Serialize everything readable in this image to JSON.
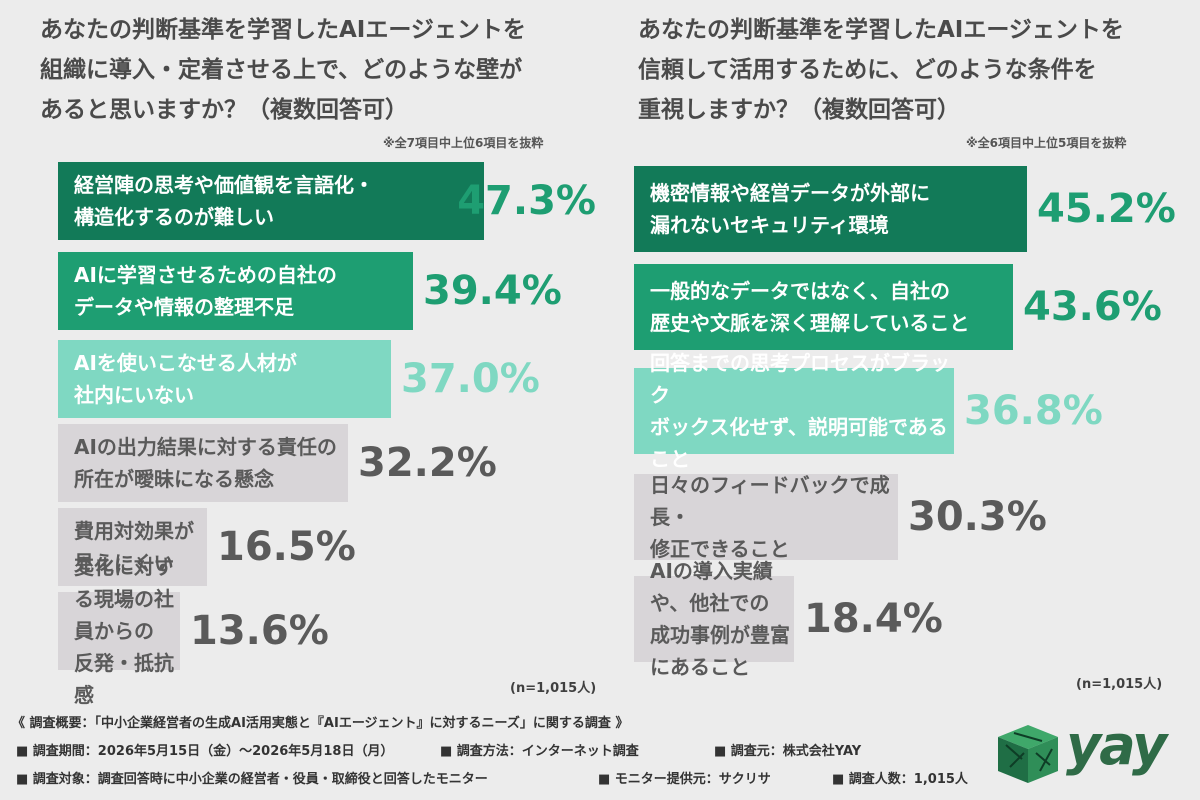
{
  "chart_data": [
    {
      "type": "bar",
      "title": "あなたの判断基準を学習したAIエージェントを\n組織に導入・定着させる上で、どのような壁が\nあると思いますか？（複数回答可）",
      "note": "※全7項目中上位6項目を抜粋",
      "categories": [
        "経営陣の思考や価値観を言語化・\n構造化するのが難しい",
        "AIに学習させるための自社の\nデータや情報の整理不足",
        "AIを使いこなせる人材が\n社内にいない",
        "AIの出力結果に対する責任の\n所在が曖昧になる懸念",
        "費用対効果が見えにくい",
        "変化に対する現場の社員からの\n反発・抵抗感"
      ],
      "values": [
        47.3,
        39.4,
        37.0,
        32.2,
        16.5,
        13.6
      ],
      "labels": [
        "47.3%",
        "39.4%",
        "37.0%",
        "32.2%",
        "16.5%",
        "13.6%"
      ],
      "n_note": "(n=1,015人)"
    },
    {
      "type": "bar",
      "title": "あなたの判断基準を学習したAIエージェントを\n信頼して活用するために、どのような条件を\n重視しますか？（複数回答可）",
      "note": "※全6項目中上位5項目を抜粋",
      "categories": [
        "機密情報や経営データが外部に\n漏れないセキュリティ環境",
        "一般的なデータではなく、自社の\n歴史や文脈を深く理解していること",
        "回答までの思考プロセスがブラック\nボックス化せず、説明可能であること",
        "日々のフィードバックで成長・\n修正できること",
        "AIの導入実績や、他社での\n成功事例が豊富にあること"
      ],
      "values": [
        45.2,
        43.6,
        36.8,
        30.3,
        18.4
      ],
      "labels": [
        "45.2%",
        "43.6%",
        "36.8%",
        "30.3%",
        "18.4%"
      ],
      "n_note": "(n=1,015人)"
    }
  ],
  "colors": {
    "dark_green": "#127a58",
    "mid_green": "#1e9e72",
    "light_green": "#7fd8c2",
    "gray_bar": "#d8d5d8",
    "gray_text": "#5a5a5a",
    "white_text": "#ffffff"
  },
  "footer": {
    "title": "《 調査概要：「中小企業経営者の生成AI活用実態と『AIエージェント』に対するニーズ」に関する調査 》",
    "period": "■ 調査期間：2026年5月15日（金）〜2026年5月18日（月）",
    "method": "■ 調査方法：インターネット調査",
    "source": "■ 調査元：株式会社YAY",
    "target": "■ 調査対象：調査回答時に中小企業の経営者・役員・取締役と回答したモニター",
    "provider": "■ モニター提供元：サクリサ",
    "count": "■ 調査人数：1,015人"
  },
  "logo": {
    "text": "yay",
    "icon": "cube-logo-icon"
  }
}
